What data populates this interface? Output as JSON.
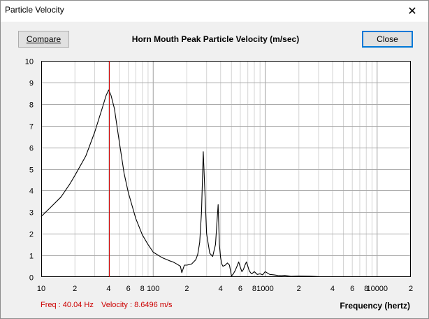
{
  "window": {
    "title": "Particle Velocity",
    "close_glyph": "✕"
  },
  "toolbar": {
    "compare_label": "Compare",
    "close_label": "Close"
  },
  "chart_data": {
    "type": "line",
    "title": "Horn Mouth Peak Particle Velocity (m/sec)",
    "xlabel": "Frequency (hertz)",
    "ylabel": "",
    "x_scale": "log",
    "xlim": [
      10,
      20000
    ],
    "ylim": [
      0,
      10
    ],
    "grid": true,
    "y_ticks": [
      "0",
      "1",
      "2",
      "3",
      "4",
      "5",
      "6",
      "7",
      "8",
      "9",
      "10"
    ],
    "x_ticks": [
      {
        "value": 10,
        "label": "10"
      },
      {
        "value": 20,
        "label": "2"
      },
      {
        "value": 40,
        "label": "4"
      },
      {
        "value": 60,
        "label": "6"
      },
      {
        "value": 80,
        "label": "8"
      },
      {
        "value": 100,
        "label": "100"
      },
      {
        "value": 200,
        "label": "2"
      },
      {
        "value": 400,
        "label": "4"
      },
      {
        "value": 600,
        "label": "6"
      },
      {
        "value": 800,
        "label": "8"
      },
      {
        "value": 1000,
        "label": "1000"
      },
      {
        "value": 2000,
        "label": "2"
      },
      {
        "value": 4000,
        "label": "4"
      },
      {
        "value": 6000,
        "label": "6"
      },
      {
        "value": 8000,
        "label": "8"
      },
      {
        "value": 10000,
        "label": "10000"
      },
      {
        "value": 20000,
        "label": "2"
      }
    ],
    "cursor_freq": 40.04,
    "series": [
      {
        "line_color": "#000000",
        "x": [
          10,
          12,
          15,
          18,
          20,
          25,
          30,
          35,
          38,
          40,
          42,
          45,
          50,
          55,
          60,
          70,
          80,
          90,
          100,
          120,
          140,
          150,
          160,
          175,
          180,
          190,
          200,
          220,
          240,
          250,
          260,
          270,
          280,
          300,
          320,
          340,
          360,
          380,
          390,
          400,
          410,
          420,
          440,
          460,
          480,
          500,
          520,
          540,
          560,
          580,
          600,
          620,
          640,
          660,
          680,
          700,
          720,
          740,
          760,
          780,
          800,
          850,
          900,
          950,
          1000,
          1100,
          1200,
          1300,
          1400,
          1500,
          1700,
          2000,
          2500,
          3000
        ],
        "y": [
          2.8,
          3.2,
          3.7,
          4.3,
          4.7,
          5.6,
          6.7,
          7.8,
          8.4,
          8.65,
          8.4,
          7.8,
          6.2,
          4.8,
          3.9,
          2.7,
          1.95,
          1.5,
          1.15,
          0.9,
          0.75,
          0.7,
          0.62,
          0.5,
          0.2,
          0.55,
          0.55,
          0.6,
          0.8,
          1.05,
          1.6,
          3.0,
          5.8,
          2.0,
          1.1,
          0.95,
          1.5,
          3.35,
          1.5,
          0.9,
          0.6,
          0.5,
          0.55,
          0.65,
          0.55,
          0.05,
          0.15,
          0.3,
          0.5,
          0.7,
          0.45,
          0.25,
          0.35,
          0.55,
          0.7,
          0.5,
          0.3,
          0.2,
          0.15,
          0.2,
          0.25,
          0.12,
          0.15,
          0.1,
          0.25,
          0.12,
          0.1,
          0.07,
          0.06,
          0.08,
          0.03,
          0.05,
          0.04,
          0.02
        ]
      }
    ]
  },
  "status": {
    "freq_text": "Freq : 40.04 Hz",
    "velocity_text": "Velocity : 8.6496 m/s"
  },
  "colors": {
    "cursor": "#cc0000",
    "grid": "#c8c8c8",
    "plot_bg": "#ffffff"
  }
}
